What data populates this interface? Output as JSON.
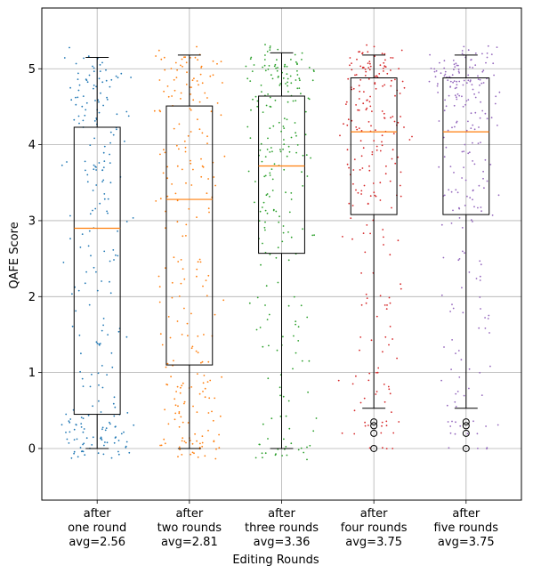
{
  "chart_data": {
    "type": "box",
    "title": "",
    "xlabel": "Editing Rounds",
    "ylabel": "QAFE Score",
    "ylim": [
      -0.68,
      5.8
    ],
    "yticks": [
      0,
      1,
      2,
      3,
      4,
      5
    ],
    "grid": true,
    "categories": [
      {
        "lines": [
          "after",
          "one round",
          "avg=2.56"
        ],
        "color": "#1f77b4",
        "q1": 0.45,
        "median": 2.9,
        "q3": 4.23,
        "whisker_low": 0.0,
        "whisker_high": 5.15,
        "outliers": [],
        "avg": 2.56
      },
      {
        "lines": [
          "after",
          "two rounds",
          "avg=2.81"
        ],
        "color": "#ff7f0e",
        "q1": 1.1,
        "median": 3.28,
        "q3": 4.51,
        "whisker_low": 0.0,
        "whisker_high": 5.18,
        "outliers": [],
        "avg": 2.81
      },
      {
        "lines": [
          "after",
          "three rounds",
          "avg=3.36"
        ],
        "color": "#2ca02c",
        "q1": 2.57,
        "median": 3.72,
        "q3": 4.64,
        "whisker_low": 0.0,
        "whisker_high": 5.21,
        "outliers": [],
        "avg": 3.36
      },
      {
        "lines": [
          "after",
          "four rounds",
          "avg=3.75"
        ],
        "color": "#d62728",
        "q1": 3.08,
        "median": 4.17,
        "q3": 4.88,
        "whisker_low": 0.53,
        "whisker_high": 5.18,
        "outliers": [
          0.0,
          0.2,
          0.3,
          0.35
        ],
        "avg": 3.75
      },
      {
        "lines": [
          "after",
          "five rounds",
          "avg=3.75"
        ],
        "color": "#9467bd",
        "q1": 3.08,
        "median": 4.17,
        "q3": 4.88,
        "whisker_low": 0.53,
        "whisker_high": 5.18,
        "outliers": [
          0.0,
          0.2,
          0.3,
          0.35
        ],
        "avg": 3.75
      }
    ]
  }
}
